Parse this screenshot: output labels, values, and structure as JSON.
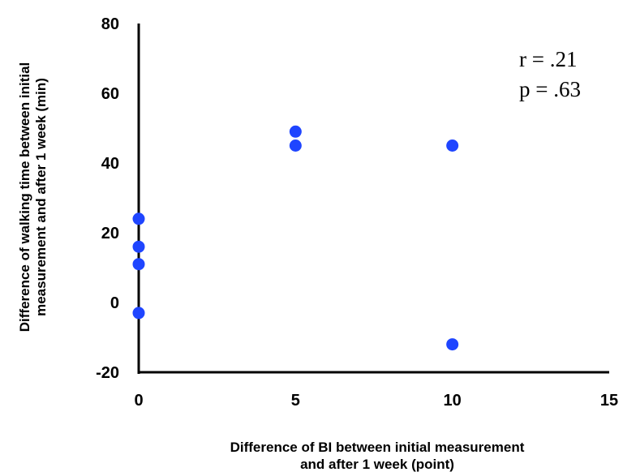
{
  "chart_data": {
    "type": "scatter",
    "title": "",
    "xlabel": [
      "Difference of BI between initial measurement",
      "and after 1 week (point)"
    ],
    "ylabel": [
      "Difference of walking time between initial",
      "measurement and after 1 week (min)"
    ],
    "xlim": [
      0,
      15
    ],
    "ylim": [
      -20,
      80
    ],
    "x_ticks": [
      "0",
      "5",
      "10",
      "15"
    ],
    "y_ticks": [
      "-20",
      "0",
      "20",
      "40",
      "60",
      "80"
    ],
    "grid": false,
    "legend": "none",
    "marker_color": "#1f45ff",
    "points": [
      {
        "x": 0,
        "y": 24
      },
      {
        "x": 0,
        "y": 16
      },
      {
        "x": 0,
        "y": 11
      },
      {
        "x": 0,
        "y": -3
      },
      {
        "x": 5,
        "y": 49
      },
      {
        "x": 5,
        "y": 45
      },
      {
        "x": 10,
        "y": 45
      },
      {
        "x": 10,
        "y": -12
      }
    ],
    "annotations": [
      "r = .21",
      "p = .63"
    ]
  }
}
